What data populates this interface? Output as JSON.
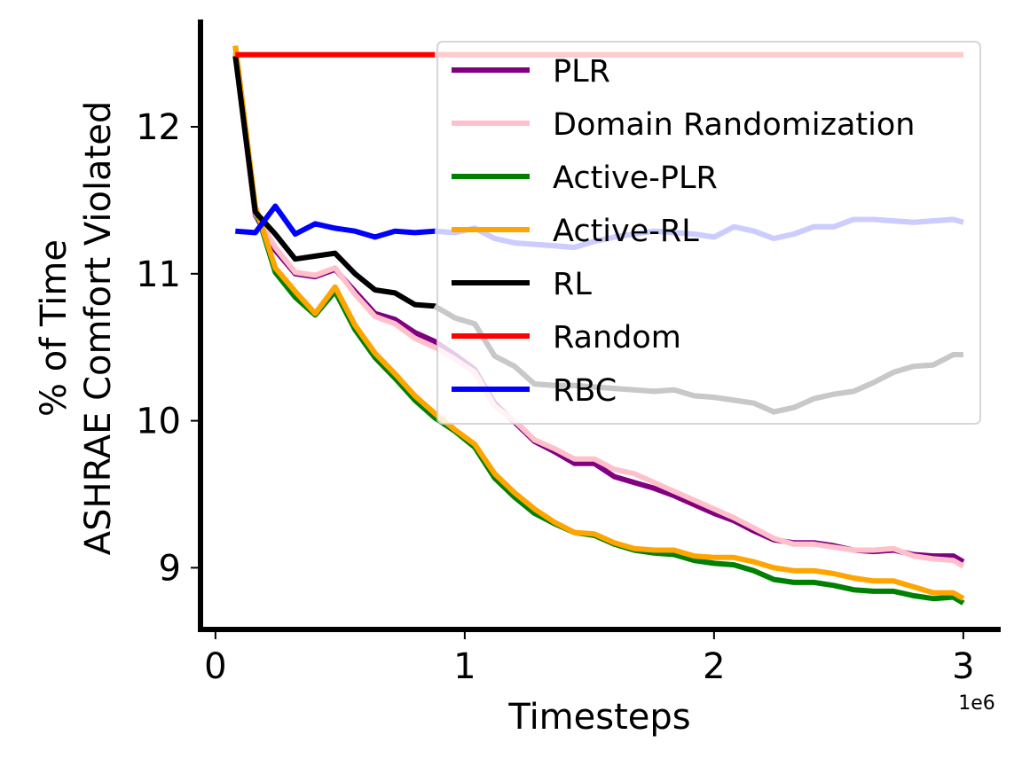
{
  "chart_data": {
    "type": "line",
    "xlabel": "Timesteps",
    "ylabel_lines": [
      "% of Time",
      "ASHRAE Comfort Violated"
    ],
    "x_offset_label": "1e6",
    "xlim": [
      -0.06,
      3.15
    ],
    "ylim": [
      8.58,
      12.73
    ],
    "xticks": [
      0,
      1,
      2,
      3
    ],
    "yticks": [
      9,
      10,
      11,
      12
    ],
    "grid": false,
    "legend_position": "upper right",
    "x": [
      0.08,
      0.16,
      0.24,
      0.32,
      0.4,
      0.48,
      0.56,
      0.64,
      0.72,
      0.8,
      0.88,
      0.96,
      1.04,
      1.12,
      1.2,
      1.28,
      1.36,
      1.44,
      1.52,
      1.6,
      1.68,
      1.76,
      1.84,
      1.92,
      2.0,
      2.08,
      2.16,
      2.24,
      2.32,
      2.4,
      2.48,
      2.56,
      2.64,
      2.72,
      2.8,
      2.88,
      2.96,
      3.0
    ],
    "series": [
      {
        "name": "PLR",
        "color": "#800080",
        "values": [
          12.5,
          11.4,
          11.16,
          11.0,
          10.98,
          11.03,
          10.88,
          10.73,
          10.69,
          10.6,
          10.54,
          10.45,
          10.35,
          10.12,
          9.99,
          9.86,
          9.79,
          9.71,
          9.71,
          9.62,
          9.58,
          9.54,
          9.49,
          9.43,
          9.37,
          9.32,
          9.25,
          9.19,
          9.17,
          9.17,
          9.15,
          9.12,
          9.11,
          9.12,
          9.09,
          9.08,
          9.08,
          9.04
        ]
      },
      {
        "name": "Domain Randomization",
        "color": "#ffc0cb",
        "values": [
          12.5,
          11.41,
          11.18,
          11.01,
          10.99,
          11.04,
          10.86,
          10.71,
          10.66,
          10.56,
          10.5,
          10.42,
          10.33,
          10.1,
          10.0,
          9.87,
          9.81,
          9.74,
          9.74,
          9.67,
          9.64,
          9.58,
          9.52,
          9.46,
          9.4,
          9.34,
          9.27,
          9.2,
          9.16,
          9.16,
          9.14,
          9.12,
          9.12,
          9.13,
          9.08,
          9.06,
          9.05,
          9.01
        ]
      },
      {
        "name": "Active-PLR",
        "color": "#008000",
        "values": [
          12.55,
          11.45,
          11.01,
          10.84,
          10.72,
          10.88,
          10.62,
          10.43,
          10.29,
          10.14,
          10.02,
          9.93,
          9.82,
          9.61,
          9.48,
          9.37,
          9.3,
          9.24,
          9.22,
          9.16,
          9.12,
          9.1,
          9.09,
          9.05,
          9.03,
          9.02,
          8.98,
          8.92,
          8.9,
          8.9,
          8.88,
          8.85,
          8.84,
          8.84,
          8.81,
          8.79,
          8.8,
          8.76
        ]
      },
      {
        "name": "Active-RL",
        "color": "#ffa500",
        "values": [
          12.55,
          11.46,
          11.04,
          10.88,
          10.73,
          10.91,
          10.65,
          10.46,
          10.32,
          10.17,
          10.05,
          9.94,
          9.84,
          9.64,
          9.51,
          9.4,
          9.31,
          9.24,
          9.23,
          9.17,
          9.13,
          9.12,
          9.12,
          9.08,
          9.07,
          9.07,
          9.04,
          9.0,
          8.98,
          8.98,
          8.96,
          8.93,
          8.91,
          8.91,
          8.87,
          8.83,
          8.83,
          8.79
        ]
      },
      {
        "name": "RL",
        "color": "#000000",
        "fade_after_x": 0.95,
        "faded_color": "#c8c8c8",
        "values": [
          12.48,
          11.42,
          11.27,
          11.1,
          11.12,
          11.14,
          11.0,
          10.89,
          10.87,
          10.79,
          10.78,
          10.7,
          10.66,
          10.44,
          10.37,
          10.25,
          10.24,
          10.24,
          10.23,
          10.22,
          10.21,
          10.2,
          10.21,
          10.17,
          10.16,
          10.14,
          10.12,
          10.06,
          10.09,
          10.15,
          10.18,
          10.2,
          10.26,
          10.33,
          10.37,
          10.38,
          10.45,
          10.45
        ]
      },
      {
        "name": "Random",
        "color": "#ff0000",
        "fade_after_x": 0.95,
        "faded_color": "#ffcccc",
        "values": [
          12.49,
          12.49,
          12.49,
          12.49,
          12.49,
          12.49,
          12.49,
          12.49,
          12.49,
          12.49,
          12.49,
          12.49,
          12.49,
          12.49,
          12.49,
          12.49,
          12.49,
          12.49,
          12.49,
          12.49,
          12.49,
          12.49,
          12.49,
          12.49,
          12.49,
          12.49,
          12.49,
          12.49,
          12.49,
          12.49,
          12.49,
          12.49,
          12.49,
          12.49,
          12.49,
          12.49,
          12.49,
          12.49
        ]
      },
      {
        "name": "RBC",
        "color": "#0000ff",
        "fade_after_x": 0.95,
        "faded_color": "#ccccff",
        "values": [
          11.29,
          11.28,
          11.46,
          11.27,
          11.34,
          11.31,
          11.29,
          11.25,
          11.29,
          11.28,
          11.29,
          11.28,
          11.31,
          11.24,
          11.21,
          11.2,
          11.19,
          11.18,
          11.22,
          11.25,
          11.27,
          11.29,
          11.28,
          11.27,
          11.25,
          11.32,
          11.29,
          11.24,
          11.27,
          11.32,
          11.32,
          11.37,
          11.37,
          11.36,
          11.35,
          11.36,
          11.37,
          11.35
        ]
      }
    ]
  }
}
